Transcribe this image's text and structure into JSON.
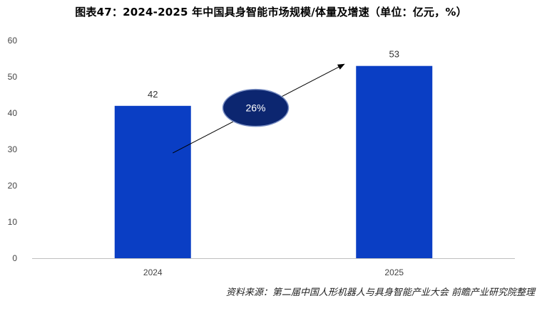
{
  "chart_data": {
    "type": "bar",
    "title": "图表47：2024-2025 年中国具身智能市场规模/体量及增速（单位：亿元，%）",
    "categories": [
      "2024",
      "2025"
    ],
    "values": [
      42,
      53
    ],
    "data_labels": [
      "42",
      "53"
    ],
    "ylim": [
      0,
      60
    ],
    "y_ticks": [
      0,
      10,
      20,
      30,
      40,
      50,
      60
    ],
    "y_tick_labels": [
      "0",
      "10",
      "20",
      "30",
      "40",
      "50",
      "60"
    ],
    "grid": false,
    "bar_color": "#0A3EC4",
    "annotation": {
      "type": "growth-arrow",
      "label": "26%",
      "fill_color": "#0C2670",
      "from": "2024",
      "to": "2025"
    },
    "source": "资料来源：第二届中国人形机器人与具身智能产业大会 前瞻产业研究院整理"
  }
}
